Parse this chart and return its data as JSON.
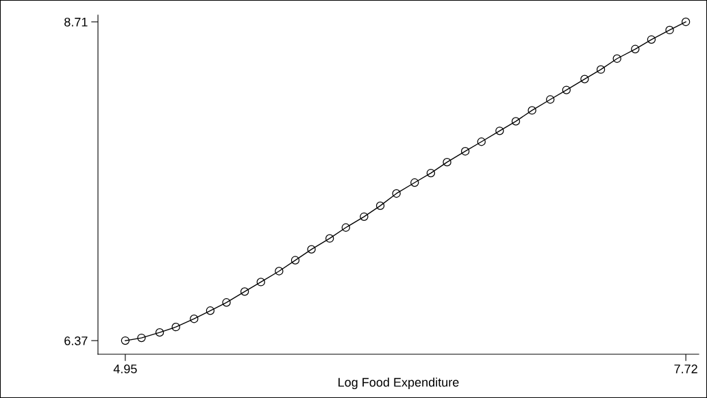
{
  "chart_data": {
    "type": "line",
    "xlabel": "Log Food Expenditure",
    "x": [
      4.95,
      5.03,
      5.12,
      5.2,
      5.29,
      5.37,
      5.45,
      5.54,
      5.62,
      5.71,
      5.79,
      5.87,
      5.96,
      6.04,
      6.13,
      6.21,
      6.29,
      6.38,
      6.46,
      6.54,
      6.63,
      6.71,
      6.8,
      6.88,
      6.96,
      7.05,
      7.13,
      7.22,
      7.3,
      7.38,
      7.47,
      7.55,
      7.64,
      7.72
    ],
    "series": [
      {
        "color": "#000000",
        "values": [
          6.37,
          6.39,
          6.43,
          6.47,
          6.53,
          6.59,
          6.65,
          6.73,
          6.8,
          6.88,
          6.96,
          7.04,
          7.12,
          7.2,
          7.28,
          7.36,
          7.45,
          7.53,
          7.6,
          7.68,
          7.76,
          7.83,
          7.91,
          7.98,
          8.06,
          8.14,
          8.21,
          8.29,
          8.36,
          8.44,
          8.51,
          8.58,
          8.65,
          8.71
        ]
      }
    ],
    "xlim": [
      4.815,
      7.784
    ],
    "ylim": [
      6.27,
      8.76
    ],
    "xticks": [
      4.95,
      7.72
    ],
    "yticks": [
      6.37,
      8.71
    ],
    "marker": "circle",
    "line_style": "solid",
    "grid": false,
    "legend": false
  }
}
